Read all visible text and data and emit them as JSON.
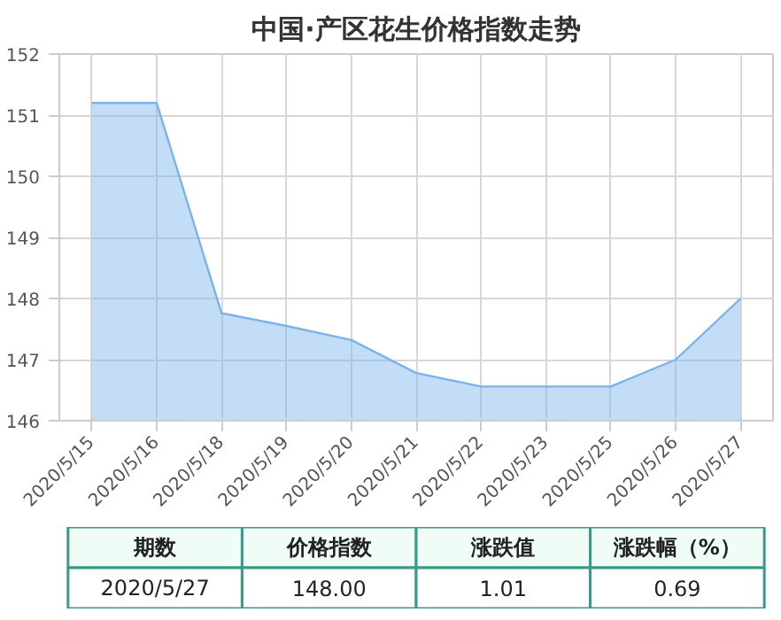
{
  "chart_data": {
    "type": "area",
    "title": "中国·产区花生价格指数走势",
    "categories": [
      "2020/5/15",
      "2020/5/16",
      "2020/5/18",
      "2020/5/19",
      "2020/5/20",
      "2020/5/21",
      "2020/5/22",
      "2020/5/23",
      "2020/5/25",
      "2020/5/26",
      "2020/5/27"
    ],
    "series": [
      {
        "color": "#7ab3ea",
        "values": [
          151.2,
          151.2,
          147.76,
          147.55,
          147.32,
          146.78,
          146.56,
          146.56,
          146.56,
          147.0,
          148.0
        ]
      }
    ],
    "ylim": [
      146,
      152
    ],
    "yticks": [
      146,
      147,
      148,
      149,
      150,
      151,
      152
    ],
    "grid": true,
    "annotations": [
      "期数",
      "价格指数",
      "涨跌值",
      "涨跌幅（%）",
      "2020/5/27",
      "148.00",
      "1.01",
      "0.69"
    ]
  }
}
